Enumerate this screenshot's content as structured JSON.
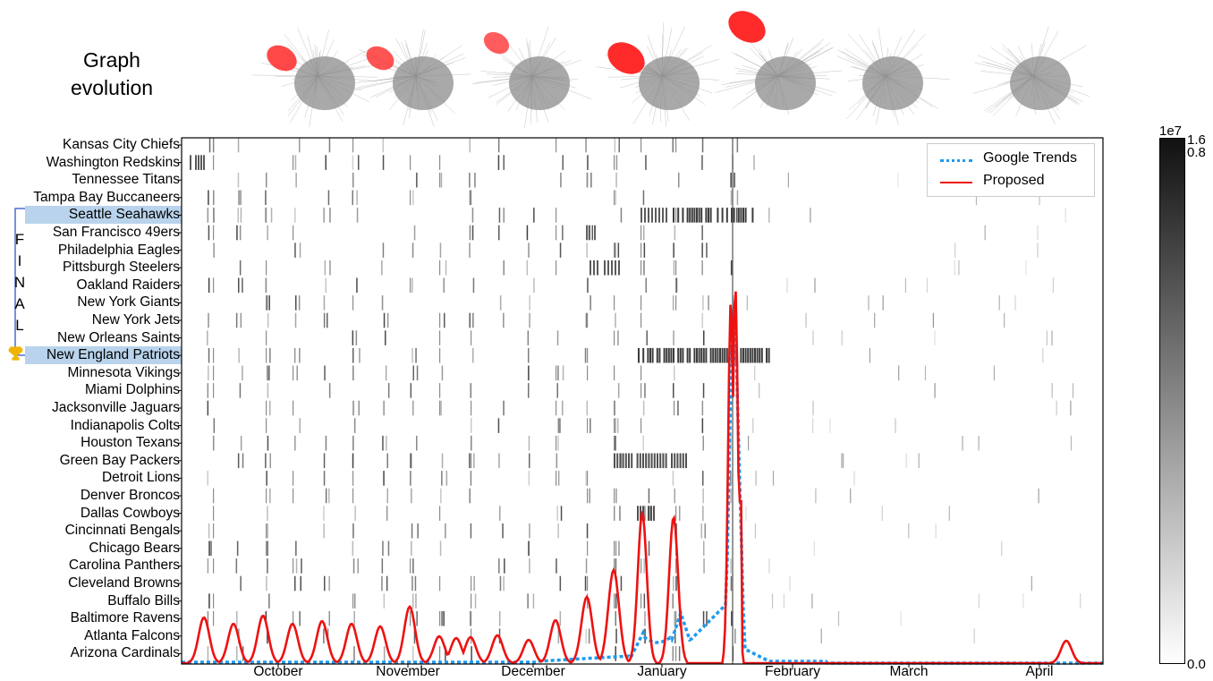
{
  "header": {
    "title_line1": "Graph",
    "title_line2": "evolution"
  },
  "colors": {
    "trends": "#1e9bf0",
    "proposed": "#ee1111",
    "highlight": "#b9d3ec",
    "final_bracket": "#4a6fd1",
    "trophy": "#f0b400"
  },
  "icons": {
    "trophy": "trophy-icon"
  },
  "final_letters": [
    "F",
    "I",
    "N",
    "A",
    "L"
  ],
  "legend": {
    "trends_label": "Google Trends",
    "proposed_label": "Proposed"
  },
  "colorbar": {
    "exponent": "1e7",
    "top_label": "1.6",
    "upper_label": "0.8",
    "bottom_label": "0.0"
  },
  "chart_data": {
    "type": "heatmap",
    "title": "",
    "xlabel": "",
    "ylabel": "",
    "grid": false,
    "legend_position": "top-right",
    "x_tick_labels": [
      "October",
      "November",
      "December",
      "January",
      "February",
      "March",
      "April"
    ],
    "teams": [
      "Kansas City Chiefs",
      "Washington Redskins",
      "Tennessee Titans",
      "Tampa Bay Buccaneers",
      "Seattle Seahawks",
      "San Francisco 49ers",
      "Philadelphia Eagles",
      "Pittsburgh Steelers",
      "Oakland Raiders",
      "New York Giants",
      "New York Jets",
      "New Orleans Saints",
      "New England Patriots",
      "Minnesota Vikings",
      "Miami Dolphins",
      "Jacksonville Jaguars",
      "Indianapolis Colts",
      "Houston Texans",
      "Green Bay Packers",
      "Detroit Lions",
      "Denver Broncos",
      "Dallas Cowboys",
      "Cincinnati Bengals",
      "Chicago Bears",
      "Carolina Panthers",
      "Cleveland Browns",
      "Buffalo Bills",
      "Baltimore Ravens",
      "Atlanta Falcons",
      "Arizona Cardinals"
    ],
    "highlighted_teams": [
      "Seattle Seahawks",
      "New England Patriots"
    ],
    "champion": "New England Patriots",
    "colorbar_range": [
      0,
      16000000
    ],
    "series": [
      {
        "name": "Google Trends",
        "style": "dotted"
      },
      {
        "name": "Proposed",
        "style": "solid"
      }
    ]
  }
}
